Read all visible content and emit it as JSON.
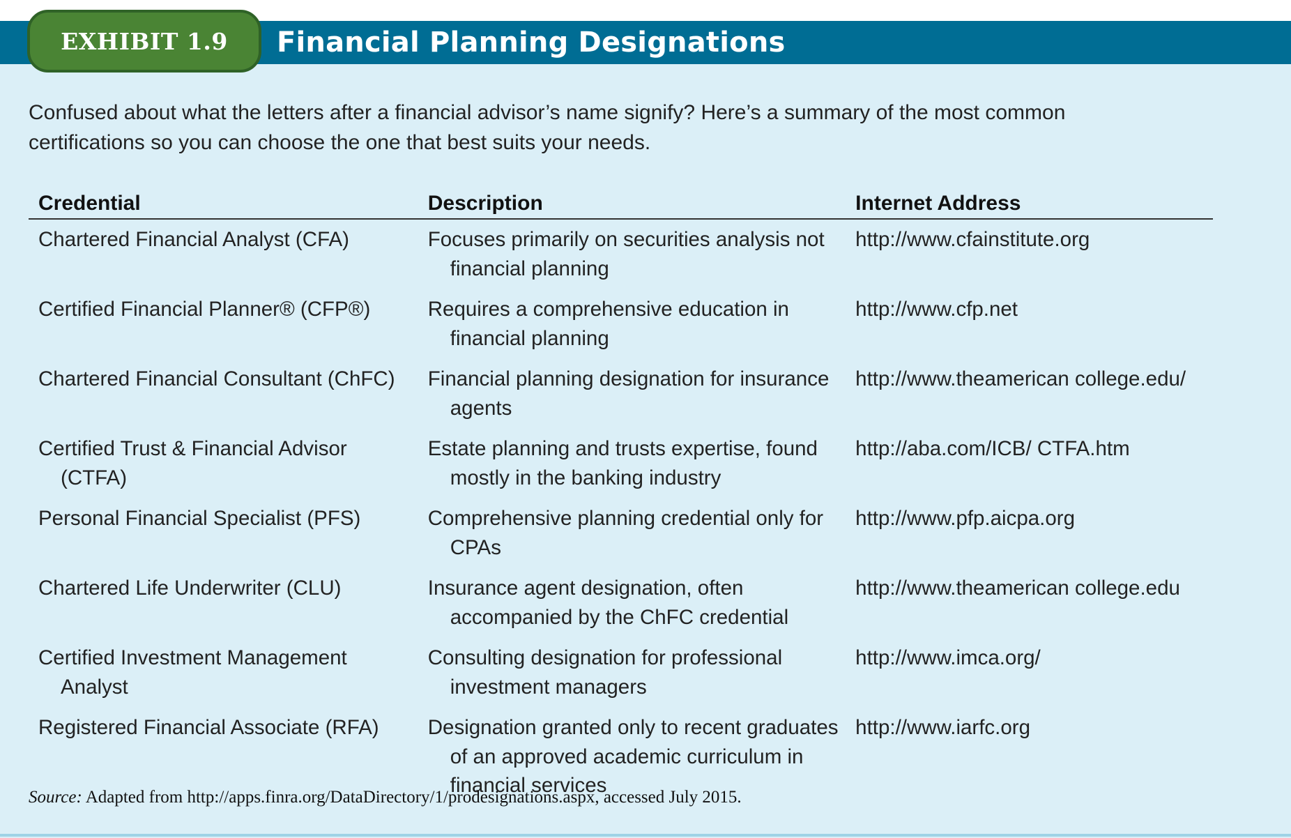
{
  "header": {
    "exhibit_label": "EXHIBIT 1.9",
    "title": "Financial Planning Designations"
  },
  "intro": {
    "line1": "Confused about what the letters after a financial advisor’s name signify? Here’s a summary of the most common",
    "line2": "certifications so you can choose the one that best suits your needs."
  },
  "table": {
    "headers": [
      "Credential",
      "Description",
      "Internet Address"
    ],
    "rows": [
      {
        "credential": "Chartered Financial Analyst (CFA)",
        "description": "Focuses primarily on securities analysis not financial planning",
        "url": "http://www.cfainstitute.org"
      },
      {
        "credential": "Certified Financial Planner® (CFP®)",
        "description": "Requires a comprehensive education in financial planning",
        "url": "http://www.cfp.net"
      },
      {
        "credential": "Chartered Financial Consultant (ChFC)",
        "description": "Financial planning designation for insurance agents",
        "url": "http://www.theamerican college.edu/"
      },
      {
        "credential": "Certified Trust & Financial Advisor (CTFA)",
        "description": "Estate planning and trusts expertise, found mostly in the banking industry",
        "url": "http://aba.com/ICB/ CTFA.htm"
      },
      {
        "credential": "Personal Financial Specialist (PFS)",
        "description": "Comprehensive planning credential only for CPAs",
        "url": "http://www.pfp.aicpa.org"
      },
      {
        "credential": "Chartered Life Underwriter (CLU)",
        "description": "Insurance agent designation, often accompanied by the ChFC credential",
        "url": "http://www.theamerican college.edu"
      },
      {
        "credential": "Certified Investment Management Analyst",
        "description": "Consulting designation for professional investment managers",
        "url": "http://www.imca.org/"
      },
      {
        "credential": "Registered Financial Associate (RFA)",
        "description": "Designation granted only to recent graduates of an approved academic curriculum in financial services",
        "url": "http://www.iarfc.org"
      }
    ]
  },
  "source": {
    "label": "Source:",
    "text": " Adapted from http://apps.finra.org/DataDirectory/1/prodesignations.aspx, accessed July 2015."
  },
  "colors": {
    "header_bar": "#006d94",
    "badge": "#4a8434",
    "panel": "#dbeff7"
  }
}
